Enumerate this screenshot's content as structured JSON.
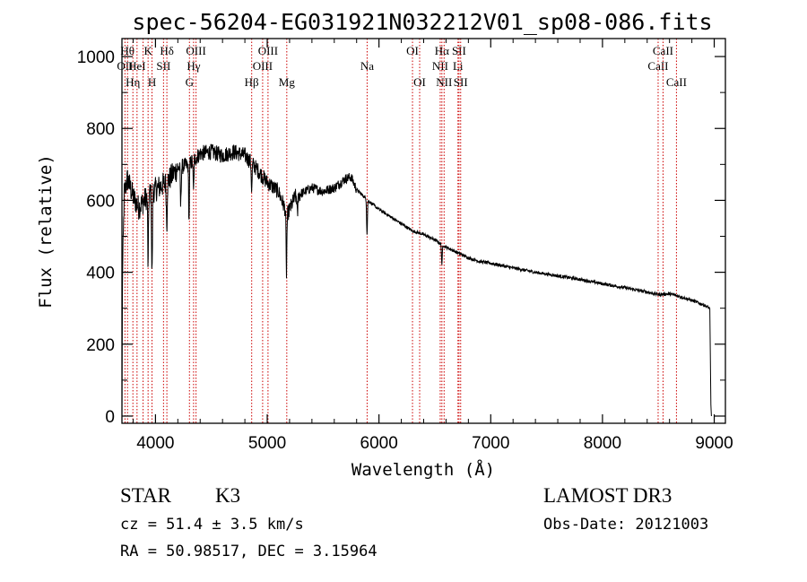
{
  "chart_data": {
    "type": "line",
    "title": "spec-56204-EG031921N032212V01_sp08-086.fits",
    "xlabel": "Wavelength (Å)",
    "ylabel": "Flux (relative)",
    "xlim": [
      3700,
      9100
    ],
    "ylim": [
      -20,
      1050
    ],
    "xticks": [
      4000,
      5000,
      6000,
      7000,
      8000,
      9000
    ],
    "yticks": [
      0,
      200,
      400,
      600,
      800,
      1000
    ],
    "spectrum_knots": [
      [
        3700,
        0
      ],
      [
        3705,
        380
      ],
      [
        3720,
        620
      ],
      [
        3750,
        660
      ],
      [
        3800,
        610
      ],
      [
        3850,
        580
      ],
      [
        3900,
        600
      ],
      [
        3950,
        620
      ],
      [
        4000,
        630
      ],
      [
        4100,
        650
      ],
      [
        4200,
        690
      ],
      [
        4300,
        700
      ],
      [
        4400,
        730
      ],
      [
        4500,
        735
      ],
      [
        4600,
        725
      ],
      [
        4700,
        735
      ],
      [
        4800,
        725
      ],
      [
        4900,
        690
      ],
      [
        5000,
        650
      ],
      [
        5100,
        625
      ],
      [
        5180,
        560
      ],
      [
        5250,
        610
      ],
      [
        5400,
        635
      ],
      [
        5500,
        625
      ],
      [
        5600,
        635
      ],
      [
        5700,
        660
      ],
      [
        5750,
        665
      ],
      [
        5800,
        630
      ],
      [
        5900,
        600
      ],
      [
        6000,
        575
      ],
      [
        6100,
        555
      ],
      [
        6200,
        535
      ],
      [
        6300,
        515
      ],
      [
        6400,
        505
      ],
      [
        6500,
        490
      ],
      [
        6600,
        470
      ],
      [
        6700,
        455
      ],
      [
        6800,
        440
      ],
      [
        6900,
        430
      ],
      [
        7000,
        425
      ],
      [
        7200,
        412
      ],
      [
        7400,
        400
      ],
      [
        7600,
        390
      ],
      [
        7800,
        380
      ],
      [
        8000,
        368
      ],
      [
        8200,
        357
      ],
      [
        8400,
        345
      ],
      [
        8500,
        338
      ],
      [
        8600,
        340
      ],
      [
        8700,
        332
      ],
      [
        8800,
        322
      ],
      [
        8900,
        310
      ],
      [
        8960,
        300
      ],
      [
        8970,
        30
      ],
      [
        8975,
        0
      ]
    ],
    "absorption_features": [
      {
        "x": 3934,
        "depth": 200
      },
      {
        "x": 3969,
        "depth": 230
      },
      {
        "x": 4101,
        "depth": 120
      },
      {
        "x": 4226,
        "depth": 110
      },
      {
        "x": 4300,
        "depth": 160
      },
      {
        "x": 4340,
        "depth": 90
      },
      {
        "x": 4861,
        "depth": 80
      },
      {
        "x": 5172,
        "depth": 170
      },
      {
        "x": 5270,
        "depth": 60
      },
      {
        "x": 5893,
        "depth": 95
      },
      {
        "x": 6563,
        "depth": 55
      }
    ],
    "lines": [
      {
        "x": 3727,
        "label": "OII",
        "row": 1
      },
      {
        "x": 3750,
        "label": "Hθ",
        "row": 0
      },
      {
        "x": 3798,
        "label": "Hη",
        "row": 2
      },
      {
        "x": 3835,
        "label": "HeI",
        "row": 1
      },
      {
        "x": 3889,
        "label": "",
        "row": 0
      },
      {
        "x": 3934,
        "label": "K",
        "row": 0
      },
      {
        "x": 3969,
        "label": "H",
        "row": 2
      },
      {
        "x": 4072,
        "label": "SII",
        "row": 1
      },
      {
        "x": 4102,
        "label": "Hδ",
        "row": 0
      },
      {
        "x": 4304,
        "label": "G",
        "row": 2
      },
      {
        "x": 4341,
        "label": "Hγ",
        "row": 1
      },
      {
        "x": 4363,
        "label": "OIII",
        "row": 0
      },
      {
        "x": 4861,
        "label": "Hβ",
        "row": 2
      },
      {
        "x": 4959,
        "label": "OIII",
        "row": 1
      },
      {
        "x": 5007,
        "label": "OIII",
        "row": 0
      },
      {
        "x": 5175,
        "label": "Mg",
        "row": 2
      },
      {
        "x": 5894,
        "label": "Na",
        "row": 1
      },
      {
        "x": 6300,
        "label": "OI",
        "row": 0
      },
      {
        "x": 6364,
        "label": "OI",
        "row": 2
      },
      {
        "x": 6548,
        "label": "NII",
        "row": 1
      },
      {
        "x": 6563,
        "label": "Hα",
        "row": 0
      },
      {
        "x": 6583,
        "label": "NII",
        "row": 2
      },
      {
        "x": 6707,
        "label": "Li",
        "row": 1
      },
      {
        "x": 6716,
        "label": "SII",
        "row": 0
      },
      {
        "x": 6731,
        "label": "SII",
        "row": 2
      },
      {
        "x": 8498,
        "label": "CaII",
        "row": 1
      },
      {
        "x": 8542,
        "label": "CaII",
        "row": 0
      },
      {
        "x": 8662,
        "label": "CaII",
        "row": 2
      }
    ],
    "line_color": "#cc0000",
    "spectrum_color": "#000000"
  },
  "info": {
    "class": "STAR",
    "subclass": "K3",
    "survey": "LAMOST DR3",
    "cz": "cz = 51.4 ± 3.5 km/s",
    "obs_date": "Obs-Date: 20121003",
    "radec": "RA =  50.98517, DEC =   3.15964"
  }
}
